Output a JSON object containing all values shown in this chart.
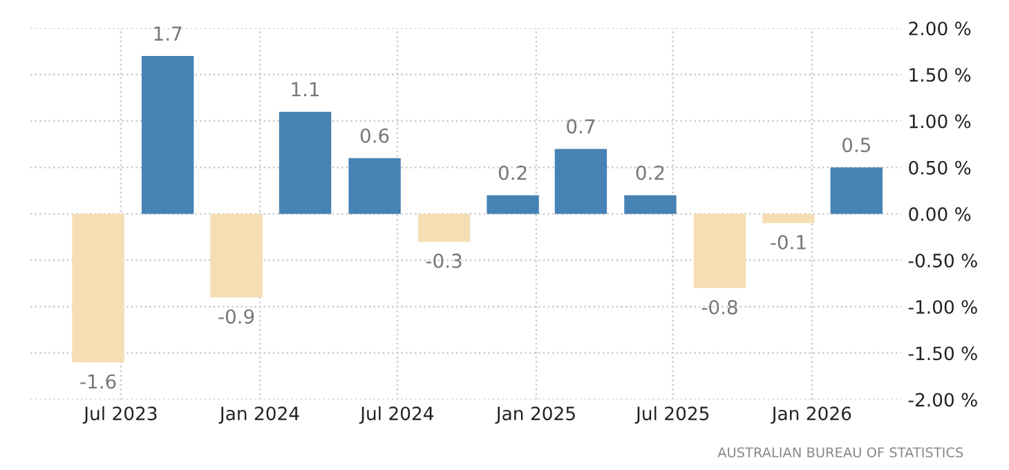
{
  "chart_data": {
    "type": "bar",
    "x": [
      "2023-06-01",
      "2023-09-01",
      "2023-12-01",
      "2024-03-01",
      "2024-06-01",
      "2024-09-01",
      "2024-12-01",
      "2025-03-01",
      "2025-06-01",
      "2025-09-01",
      "2025-12-01",
      "2026-03-01"
    ],
    "values": [
      -1.6,
      1.7,
      -0.9,
      1.1,
      0.6,
      -0.3,
      0.2,
      0.7,
      0.2,
      -0.8,
      -0.1,
      0.5
    ],
    "colors": [
      "#f5deb3",
      "#4682b4",
      "#f5deb3",
      "#4682b4",
      "#4682b4",
      "#f5deb3",
      "#4682b4",
      "#4682b4",
      "#4682b4",
      "#f5deb3",
      "#f5deb3",
      "#4682b4"
    ],
    "xlim": [
      "2023-03-03",
      "2026-04-29"
    ],
    "xticks": [
      {
        "value": "2023-07-01",
        "label": "Jul 2023"
      },
      {
        "value": "2024-01-01",
        "label": "Jan 2024"
      },
      {
        "value": "2024-07-01",
        "label": "Jul 2024"
      },
      {
        "value": "2025-01-01",
        "label": "Jan 2025"
      },
      {
        "value": "2025-07-01",
        "label": "Jul 2025"
      },
      {
        "value": "2026-01-01",
        "label": "Jan 2026"
      }
    ],
    "ylim": [
      -2,
      2
    ],
    "yticks": [
      {
        "value": -2,
        "label": "-2.00 %"
      },
      {
        "value": -1.5,
        "label": "-1.50 %"
      },
      {
        "value": -1,
        "label": "-1.00 %"
      },
      {
        "value": -0.5,
        "label": "-0.50 %"
      },
      {
        "value": 0,
        "label": "0.00 %"
      },
      {
        "value": 0.5,
        "label": "0.50 %"
      },
      {
        "value": 1,
        "label": "1.00 %"
      },
      {
        "value": 1.5,
        "label": "1.50 %"
      },
      {
        "value": 2,
        "label": "2.00 %"
      }
    ],
    "grid": true,
    "data_labels": true,
    "annotations": [
      "AUSTRALIAN BUREAU OF STATISTICS"
    ]
  }
}
